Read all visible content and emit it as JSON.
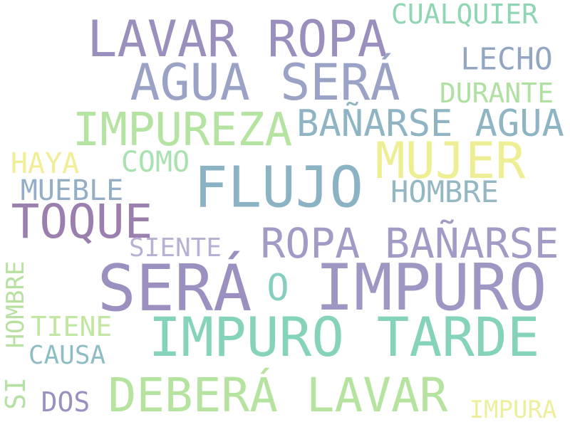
{
  "words": [
    {
      "text": "LAVAR ROPA",
      "color": "#9b8fbd"
    },
    {
      "text": "AGUA SERÁ",
      "color": "#9aa3c6"
    },
    {
      "text": "CUALQUIER",
      "color": "#8fd6b2"
    },
    {
      "text": "LECHO",
      "color": "#93a7c2"
    },
    {
      "text": "DURANTE",
      "color": "#b0e0a2"
    },
    {
      "text": "IMPUREZA",
      "color": "#b5e3a1"
    },
    {
      "text": "BAÑARSE AGUA",
      "color": "#8fb5c4"
    },
    {
      "text": "MUJER",
      "color": "#eeef94"
    },
    {
      "text": "HAYA",
      "color": "#f2ee97"
    },
    {
      "text": "COMO",
      "color": "#a9e1b0"
    },
    {
      "text": "FLUJO",
      "color": "#8cb3c4"
    },
    {
      "text": "MUEBLE",
      "color": "#93aec6"
    },
    {
      "text": "HOMBRE",
      "color": "#94b8c2"
    },
    {
      "text": "TOQUE",
      "color": "#9b7fae"
    },
    {
      "text": "ROPA BAÑARSE",
      "color": "#a39bc6"
    },
    {
      "text": "SIENTE",
      "color": "#b9b1d4"
    },
    {
      "text": "SERÁ",
      "color": "#9b90bf"
    },
    {
      "text": "O",
      "color": "#86cfc0"
    },
    {
      "text": "IMPURO",
      "color": "#9e97c4"
    },
    {
      "text": "HOMBRE",
      "color": "#b8e1a1"
    },
    {
      "text": "TIENE",
      "color": "#c1e7a3"
    },
    {
      "text": "IMPURO TARDE",
      "color": "#85d3bb"
    },
    {
      "text": "CAUSA",
      "color": "#8fbdc6"
    },
    {
      "text": "SI",
      "color": "#b5e1a3"
    },
    {
      "text": "DOS",
      "color": "#9c90c0"
    },
    {
      "text": "DEBERÁ LAVAR",
      "color": "#b6e4a0"
    },
    {
      "text": "IMPURA",
      "color": "#eeef9c"
    }
  ]
}
